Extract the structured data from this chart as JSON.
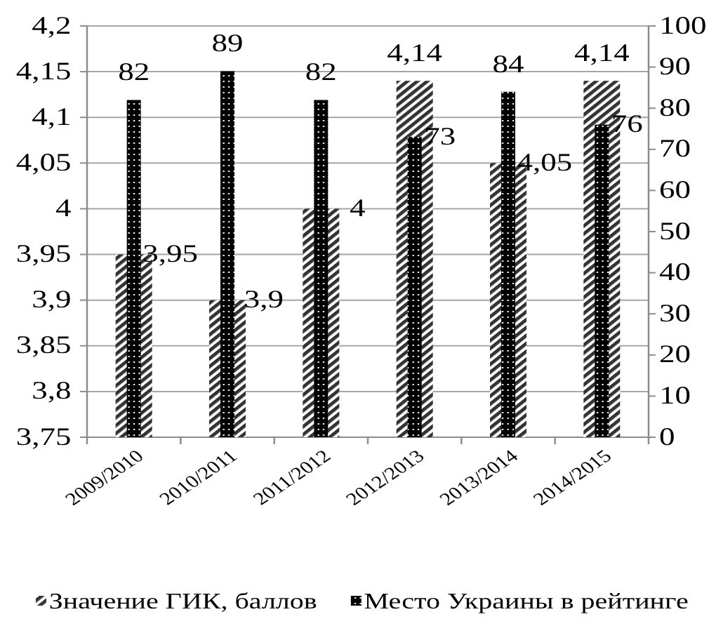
{
  "chart_data": {
    "type": "bar",
    "categories": [
      "2009/2010",
      "2010/2011",
      "2011/2012",
      "2012/2013",
      "2013/2014",
      "2014/2015"
    ],
    "series": [
      {
        "name": "Значение ГИК, баллов",
        "color": "#333333",
        "values": [
          3.95,
          3.9,
          4,
          4.14,
          4.05,
          4.14
        ],
        "value_labels": [
          "3,95",
          "3,9",
          "4",
          "4,14",
          "4,05",
          "4,14"
        ]
      },
      {
        "name": "Место Украины в рейтинге",
        "color": "#000000",
        "axis": "y2",
        "values": [
          82,
          89,
          82,
          73,
          84,
          76
        ],
        "value_labels": [
          "82",
          "89",
          "82",
          "73",
          "84",
          "76"
        ]
      }
    ],
    "ylim": [
      3.75,
      4.2
    ],
    "yticks": [
      {
        "value": 3.75,
        "label": "3,75"
      },
      {
        "value": 3.8,
        "label": "3,8"
      },
      {
        "value": 3.85,
        "label": "3,85"
      },
      {
        "value": 3.9,
        "label": "3,9"
      },
      {
        "value": 3.95,
        "label": "3,95"
      },
      4,
      {
        "value": 4.05,
        "label": "4,05"
      },
      {
        "value": 4.1,
        "label": "4,1"
      },
      {
        "value": 4.15,
        "label": "4,15"
      },
      {
        "value": 4.2,
        "label": "4,2"
      }
    ],
    "y2lim": [
      0,
      100
    ],
    "y2ticks": [
      0,
      10,
      20,
      30,
      40,
      50,
      60,
      70,
      80,
      90,
      100
    ],
    "grid": "y",
    "legend": "bottom"
  }
}
